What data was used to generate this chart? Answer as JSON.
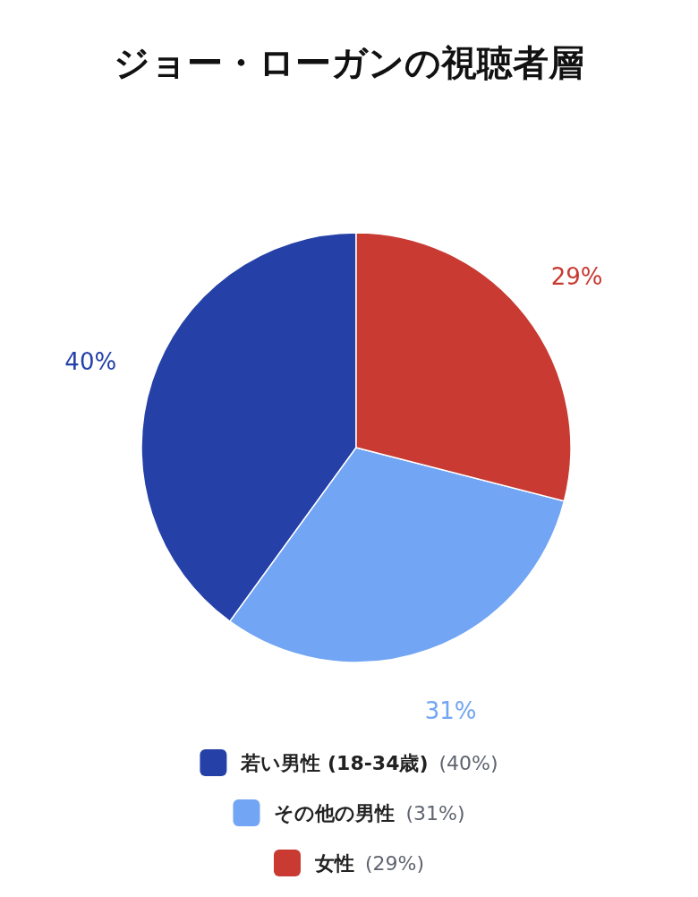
{
  "chart_data": {
    "type": "pie",
    "title": "ジョー・ローガンの視聴者層",
    "categories": [
      "若い男性 (18-34歳) (40%)",
      "その他の男性 (31%)",
      "女性 (29%)"
    ],
    "values": [
      40,
      31,
      29
    ],
    "value_labels": [
      "40%",
      "31%",
      "29%"
    ],
    "colors": [
      "#2541a8",
      "#72a5f3",
      "#c83a32"
    ],
    "legend": "bottom"
  }
}
